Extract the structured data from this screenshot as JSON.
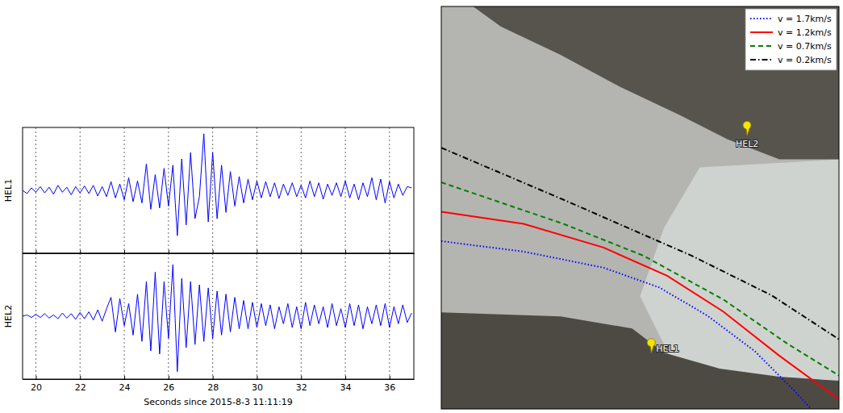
{
  "chart_data": [
    {
      "type": "line",
      "ylabel": "HEL1",
      "xlim": [
        19.4,
        37.1
      ],
      "ylim": [
        -1,
        1
      ],
      "xticks": [
        20,
        22,
        24,
        26,
        28,
        30,
        32,
        34,
        36
      ],
      "grid": true,
      "tick_labels": false,
      "color": "#0000ff",
      "line_style": "solid",
      "x": [
        19.4,
        19.6,
        19.8,
        20,
        20.2,
        20.4,
        20.6,
        20.8,
        21,
        21.2,
        21.4,
        21.6,
        21.8,
        22,
        22.2,
        22.4,
        22.6,
        22.8,
        23,
        23.2,
        23.4,
        23.6,
        23.8,
        24,
        24.2,
        24.4,
        24.6,
        24.8,
        25,
        25.2,
        25.4,
        25.6,
        25.8,
        26,
        26.2,
        26.4,
        26.6,
        26.8,
        27,
        27.2,
        27.4,
        27.6,
        27.8,
        28,
        28.2,
        28.4,
        28.6,
        28.8,
        29,
        29.2,
        29.4,
        29.6,
        29.8,
        30,
        30.2,
        30.4,
        30.6,
        30.8,
        31,
        31.2,
        31.4,
        31.6,
        31.8,
        32,
        32.2,
        32.4,
        32.6,
        32.8,
        33,
        33.2,
        33.4,
        33.6,
        33.8,
        34,
        34.2,
        34.4,
        34.6,
        34.8,
        35,
        35.2,
        35.4,
        35.6,
        35.8,
        36,
        36.2,
        36.4,
        36.6,
        36.8,
        37
      ],
      "values": [
        0,
        -0.05,
        0.04,
        -0.03,
        0.06,
        -0.04,
        0.05,
        -0.06,
        0.08,
        -0.03,
        0.05,
        -0.07,
        0.06,
        -0.04,
        0.07,
        -0.05,
        0.08,
        -0.09,
        0.06,
        -0.1,
        0.14,
        -0.12,
        0.1,
        -0.15,
        0.2,
        -0.18,
        0.15,
        -0.2,
        0.42,
        -0.3,
        0.25,
        -0.28,
        0.35,
        -0.25,
        0.4,
        -0.72,
        0.5,
        -0.55,
        0.6,
        -0.45,
        -0.1,
        0.9,
        -0.5,
        0.6,
        -0.45,
        0.4,
        -0.35,
        0.3,
        -0.25,
        0.22,
        -0.2,
        0.18,
        -0.15,
        0.15,
        -0.12,
        0.14,
        -0.1,
        0.12,
        -0.13,
        0.1,
        -0.08,
        0.12,
        -0.1,
        0.08,
        -0.12,
        0.15,
        -0.1,
        0.12,
        -0.14,
        0.1,
        -0.08,
        0.12,
        -0.1,
        0.15,
        -0.12,
        0.1,
        -0.15,
        0.12,
        -0.1,
        0.2,
        -0.15,
        0.18,
        -0.2,
        0.14,
        -0.12,
        0.1,
        -0.08,
        0.06,
        0.04
      ]
    },
    {
      "type": "line",
      "ylabel": "HEL2",
      "xlabel": "Seconds since 2015-8-3 11:11:19",
      "xlim": [
        19.4,
        37.1
      ],
      "ylim": [
        -1,
        1
      ],
      "xticks": [
        20,
        22,
        24,
        26,
        28,
        30,
        32,
        34,
        36
      ],
      "grid": true,
      "tick_labels": "x",
      "color": "#0000ff",
      "line_style": "solid",
      "x": [
        19.4,
        19.6,
        19.8,
        20,
        20.2,
        20.4,
        20.6,
        20.8,
        21,
        21.2,
        21.4,
        21.6,
        21.8,
        22,
        22.2,
        22.4,
        22.6,
        22.8,
        23,
        23.2,
        23.4,
        23.6,
        23.8,
        24,
        24.2,
        24.4,
        24.6,
        24.8,
        25,
        25.2,
        25.4,
        25.6,
        25.8,
        26,
        26.2,
        26.4,
        26.6,
        26.8,
        27,
        27.2,
        27.4,
        27.6,
        27.8,
        28,
        28.2,
        28.4,
        28.6,
        28.8,
        29,
        29.2,
        29.4,
        29.6,
        29.8,
        30,
        30.2,
        30.4,
        30.6,
        30.8,
        31,
        31.2,
        31.4,
        31.6,
        31.8,
        32,
        32.2,
        32.4,
        32.6,
        32.8,
        33,
        33.2,
        33.4,
        33.6,
        33.8,
        34,
        34.2,
        34.4,
        34.6,
        34.8,
        35,
        35.2,
        35.4,
        35.6,
        35.8,
        36,
        36.2,
        36.4,
        36.6,
        36.8,
        37
      ],
      "values": [
        0,
        0.02,
        -0.02,
        0.03,
        -0.02,
        0.04,
        -0.03,
        0.02,
        -0.04,
        0.05,
        -0.03,
        0.04,
        -0.05,
        0.06,
        -0.04,
        0.07,
        -0.06,
        0.1,
        -0.08,
        0.12,
        0.3,
        -0.25,
        0.28,
        -0.15,
        0.2,
        -0.3,
        0.35,
        -0.4,
        0.55,
        -0.55,
        0.7,
        -0.6,
        0.55,
        -0.35,
        0.82,
        -0.88,
        0.6,
        -0.5,
        0.55,
        -0.45,
        0.5,
        -0.4,
        0.45,
        -0.35,
        0.4,
        -0.3,
        0.35,
        -0.25,
        0.3,
        -0.2,
        0.25,
        -0.2,
        0.22,
        -0.18,
        0.2,
        -0.15,
        0.18,
        -0.2,
        0.15,
        -0.12,
        0.2,
        -0.18,
        0.15,
        -0.2,
        0.22,
        -0.15,
        0.18,
        -0.12,
        0.15,
        -0.18,
        0.2,
        -0.15,
        0.12,
        -0.18,
        0.2,
        -0.15,
        0.18,
        -0.2,
        0.15,
        -0.12,
        0.18,
        -0.15,
        0.2,
        -0.18,
        0.15,
        -0.12,
        0.18,
        -0.1,
        0.05
      ]
    },
    {
      "type": "map",
      "xlim": [
        0,
        100
      ],
      "ylim": [
        0,
        100
      ],
      "tick_labels": false,
      "legend": "upper right",
      "series": [
        {
          "name": "v = 1.7km/s",
          "color": "#0000ff",
          "line_style": "dotted",
          "x": [
            0,
            20.7,
            40.8,
            54.8,
            66.9,
            78.9,
            88.9,
            93.0
          ],
          "y": [
            41.7,
            39.1,
            35.1,
            30.2,
            23.2,
            14.3,
            4.4,
            0
          ]
        },
        {
          "name": "v = 1.2km/s",
          "color": "#ff0000",
          "line_style": "solid",
          "x": [
            0,
            20.7,
            40.8,
            56.8,
            70.9,
            84.9,
            100
          ],
          "y": [
            49.0,
            46.0,
            40.1,
            33.1,
            24.2,
            13.3,
            2.4
          ]
        },
        {
          "name": "v = 0.7km/s",
          "color": "#008000",
          "line_style": "dashed",
          "x": [
            0,
            30.7,
            50.8,
            70.9,
            86.9,
            100
          ],
          "y": [
            56.3,
            46.0,
            38.1,
            27.2,
            16.3,
            8.3
          ]
        },
        {
          "name": "v = 0.2km/s",
          "color": "#000000",
          "line_style": "dashdot",
          "x": [
            0,
            30.7,
            62.9,
            83.1,
            100
          ],
          "y": [
            64.9,
            52.0,
            38.1,
            28.2,
            17.3
          ]
        }
      ],
      "stations": [
        {
          "label": "HEL1",
          "x": 52.8,
          "y": 13.9,
          "color": "#f5e400"
        },
        {
          "label": "HEL2",
          "x": 76.9,
          "y": 67.9,
          "color": "#f5e400"
        }
      ]
    }
  ]
}
